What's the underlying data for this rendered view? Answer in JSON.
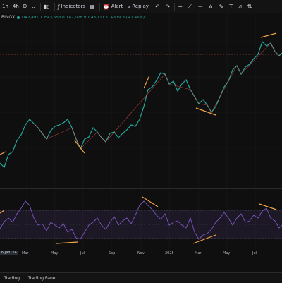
{
  "toolbar": {
    "interval_1h": "1h",
    "interval_4h": "4h",
    "interval_d": "D",
    "indicators_label": "Indicators",
    "alert_label": "Alert",
    "replay_label": "Replay"
  },
  "legend": {
    "symbol": "BINGX",
    "open": "O42,491.7",
    "high": "H43,553.0",
    "low": "L42,028.9",
    "close": "C43,111.1",
    "change": "+619.3 (+1.46%)"
  },
  "axis": {
    "first": "6 Jan '24",
    "labels": [
      "Mar",
      "May",
      "Jul",
      "Sep",
      "Nov",
      "2025",
      "Mar",
      "May",
      "Jul"
    ]
  },
  "bottom": {
    "item1": "Trading",
    "item2": "Trading Panel"
  },
  "colors": {
    "up": "#26a69a",
    "down": "#ef5350",
    "rsi": "#7e57c2",
    "trend": "#f7a54a"
  }
}
